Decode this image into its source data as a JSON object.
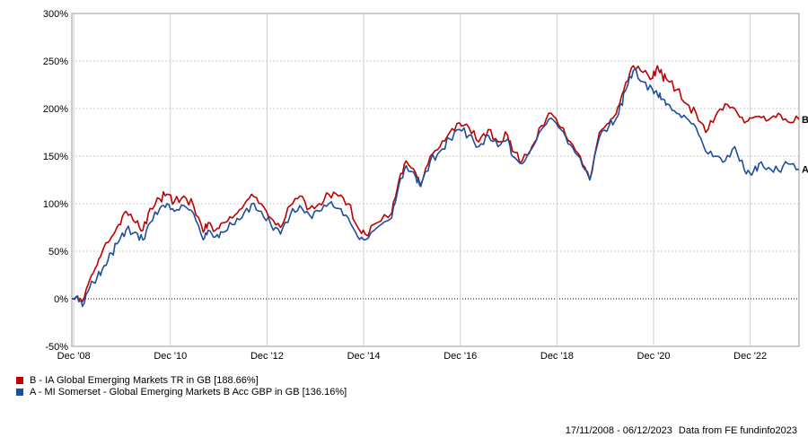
{
  "chart_data": {
    "type": "line",
    "title": "",
    "xlabel": "",
    "ylabel": "",
    "ylim": [
      -50,
      300
    ],
    "yticks": [
      -50,
      0,
      50,
      100,
      150,
      200,
      250,
      300
    ],
    "ytick_labels": [
      "-50%",
      "0%",
      "50%",
      "100%",
      "150%",
      "200%",
      "250%",
      "300%"
    ],
    "xlim": [
      2008.88,
      2023.93
    ],
    "xticks": [
      2008.92,
      2010.92,
      2012.92,
      2014.92,
      2016.92,
      2018.92,
      2020.92,
      2022.92
    ],
    "xtick_labels": [
      "Dec '08",
      "Dec '10",
      "Dec '12",
      "Dec '14",
      "Dec '16",
      "Dec '18",
      "Dec '20",
      "Dec '22"
    ],
    "grid": true,
    "zero_line": true,
    "legend_position": "bottom-left",
    "series": [
      {
        "name": "B - IA Global Emerging Markets TR in GB [188.66%]",
        "end_label": "B",
        "color": "#c00000",
        "x": [
          2008.88,
          2009.0,
          2009.1,
          2009.25,
          2009.4,
          2009.55,
          2009.7,
          2009.85,
          2010.0,
          2010.2,
          2010.35,
          2010.5,
          2010.7,
          2010.85,
          2011.0,
          2011.2,
          2011.4,
          2011.6,
          2011.7,
          2011.85,
          2012.0,
          2012.2,
          2012.4,
          2012.6,
          2012.8,
          2013.0,
          2013.2,
          2013.4,
          2013.6,
          2013.8,
          2014.0,
          2014.2,
          2014.4,
          2014.6,
          2014.8,
          2014.95,
          2015.2,
          2015.5,
          2015.65,
          2015.8,
          2016.0,
          2016.1,
          2016.3,
          2016.5,
          2016.7,
          2016.9,
          2017.1,
          2017.3,
          2017.5,
          2017.7,
          2017.9,
          2018.0,
          2018.2,
          2018.4,
          2018.6,
          2018.8,
          2019.0,
          2019.2,
          2019.4,
          2019.6,
          2019.8,
          2020.0,
          2020.15,
          2020.25,
          2020.35,
          2020.5,
          2020.7,
          2020.9,
          2021.0,
          2021.1,
          2021.2,
          2021.4,
          2021.6,
          2021.8,
          2022.0,
          2022.2,
          2022.4,
          2022.6,
          2022.8,
          2022.95,
          2023.1,
          2023.3,
          2023.5,
          2023.7,
          2023.93
        ],
        "values": [
          0,
          2,
          -3,
          20,
          35,
          55,
          65,
          78,
          92,
          80,
          72,
          95,
          105,
          110,
          102,
          108,
          98,
          70,
          80,
          72,
          80,
          85,
          95,
          110,
          100,
          85,
          75,
          98,
          108,
          95,
          100,
          110,
          108,
          100,
          75,
          68,
          80,
          90,
          125,
          145,
          132,
          120,
          150,
          160,
          175,
          185,
          180,
          165,
          178,
          165,
          172,
          155,
          145,
          160,
          182,
          195,
          180,
          165,
          150,
          125,
          175,
          185,
          195,
          212,
          228,
          245,
          238,
          232,
          245,
          235,
          230,
          220,
          205,
          195,
          175,
          192,
          205,
          200,
          185,
          190,
          192,
          188,
          195,
          186,
          188.66
        ]
      },
      {
        "name": "A - MI Somerset - Global Emerging Markets B Acc GBP in GB [136.16%]",
        "end_label": "A",
        "color": "#1f4e9c",
        "x": [
          2008.88,
          2009.0,
          2009.1,
          2009.25,
          2009.4,
          2009.55,
          2009.7,
          2009.85,
          2010.0,
          2010.2,
          2010.35,
          2010.5,
          2010.7,
          2010.85,
          2011.0,
          2011.2,
          2011.4,
          2011.6,
          2011.7,
          2011.85,
          2012.0,
          2012.2,
          2012.4,
          2012.6,
          2012.8,
          2013.0,
          2013.2,
          2013.4,
          2013.6,
          2013.8,
          2014.0,
          2014.2,
          2014.4,
          2014.6,
          2014.8,
          2014.95,
          2015.2,
          2015.5,
          2015.65,
          2015.8,
          2016.0,
          2016.1,
          2016.3,
          2016.5,
          2016.7,
          2016.9,
          2017.1,
          2017.3,
          2017.5,
          2017.7,
          2017.9,
          2018.0,
          2018.2,
          2018.4,
          2018.6,
          2018.8,
          2019.0,
          2019.2,
          2019.4,
          2019.6,
          2019.8,
          2020.0,
          2020.15,
          2020.25,
          2020.35,
          2020.5,
          2020.7,
          2020.9,
          2021.0,
          2021.1,
          2021.2,
          2021.4,
          2021.6,
          2021.8,
          2022.0,
          2022.2,
          2022.4,
          2022.6,
          2022.8,
          2022.95,
          2023.1,
          2023.3,
          2023.5,
          2023.7,
          2023.93
        ],
        "values": [
          0,
          3,
          -8,
          12,
          22,
          35,
          48,
          60,
          72,
          70,
          62,
          80,
          95,
          100,
          92,
          98,
          90,
          62,
          72,
          65,
          70,
          78,
          85,
          100,
          92,
          78,
          68,
          88,
          98,
          88,
          92,
          100,
          95,
          85,
          65,
          62,
          75,
          85,
          120,
          140,
          128,
          118,
          145,
          155,
          168,
          178,
          172,
          160,
          172,
          160,
          168,
          150,
          142,
          158,
          178,
          190,
          178,
          162,
          148,
          125,
          170,
          182,
          190,
          205,
          220,
          240,
          228,
          220,
          215,
          210,
          205,
          195,
          190,
          180,
          155,
          150,
          145,
          160,
          135,
          130,
          142,
          138,
          135,
          142,
          136.16
        ]
      }
    ]
  },
  "legend": {
    "items": [
      {
        "label": "B - IA Global Emerging Markets TR in GB [188.66%]",
        "color": "#c00000"
      },
      {
        "label": "A - MI Somerset - Global Emerging Markets B Acc GBP in GB [136.16%]",
        "color": "#1f4e9c"
      }
    ]
  },
  "footer": {
    "date_range": "17/11/2008 - 06/12/2023",
    "source": "Data from FE fundinfo2023"
  }
}
